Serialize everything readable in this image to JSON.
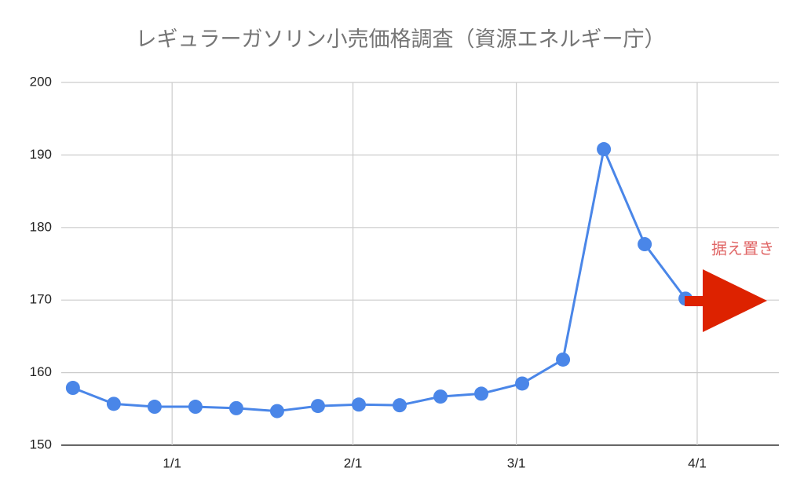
{
  "chart_data": {
    "type": "line",
    "title": "レギュラーガソリン小売価格調査（資源エネルギー庁）",
    "annotation": "据え置き",
    "x": [
      -17,
      -10,
      -3,
      4,
      11,
      18,
      25,
      32,
      39,
      46,
      53,
      60,
      67,
      74,
      81,
      88
    ],
    "series": [
      {
        "color": "#4a86e8",
        "values": [
          157.9,
          155.7,
          155.3,
          155.3,
          155.1,
          154.7,
          155.4,
          155.6,
          155.5,
          156.7,
          157.1,
          158.5,
          161.8,
          190.8,
          177.7,
          170.2
        ]
      }
    ],
    "xlim": [
      -19,
      104
    ],
    "xticks": [
      {
        "value": 0,
        "label": "1/1"
      },
      {
        "value": 31,
        "label": "2/1"
      },
      {
        "value": 59,
        "label": "3/1"
      },
      {
        "value": 90,
        "label": "4/1"
      }
    ],
    "ylim": [
      150,
      200
    ],
    "yticks": [
      150,
      160,
      170,
      180,
      190,
      200
    ],
    "grid": true
  }
}
